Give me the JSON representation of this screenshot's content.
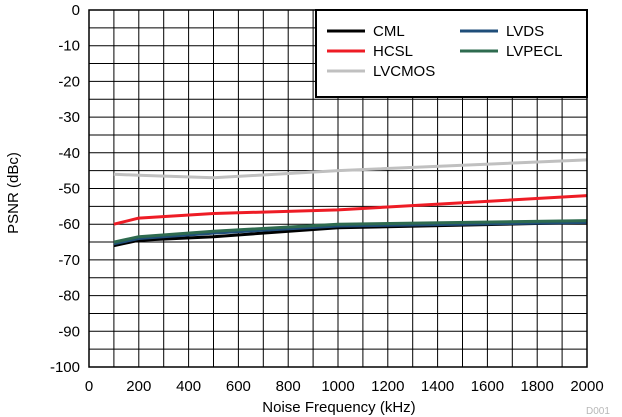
{
  "chart_data": {
    "type": "line",
    "xlabel": "Noise Frequency (kHz)",
    "ylabel": "PSNR (dBc)",
    "xlim": [
      0,
      2000
    ],
    "ylim": [
      -100,
      0
    ],
    "x_ticks": [
      0,
      200,
      400,
      600,
      800,
      1000,
      1200,
      1400,
      1600,
      1800,
      2000
    ],
    "y_ticks": [
      0,
      -10,
      -20,
      -30,
      -40,
      -50,
      -60,
      -70,
      -80,
      -90,
      -100
    ],
    "x_tick_labels": [
      "0",
      "200",
      "400",
      "600",
      "800",
      "1000",
      "1200",
      "1400",
      "1600",
      "1800",
      "2000"
    ],
    "y_tick_labels": [
      "0",
      "-10",
      "-20",
      "-30",
      "-40",
      "-50",
      "-60",
      "-70",
      "-80",
      "-90",
      "-100"
    ],
    "grid": true,
    "legend_position": "top-right",
    "figure_id": "D001",
    "series": [
      {
        "name": "CML",
        "color": "#000000",
        "x": [
          100,
          200,
          500,
          1000,
          2000
        ],
        "y": [
          -66,
          -64.5,
          -63.5,
          -61,
          -59.5
        ]
      },
      {
        "name": "HCSL",
        "color": "#ee1c25",
        "x": [
          100,
          200,
          500,
          1000,
          2000
        ],
        "y": [
          -60,
          -58.3,
          -57,
          -56,
          -52
        ]
      },
      {
        "name": "LVCMOS",
        "color": "#c0c0c0",
        "x": [
          100,
          200,
          500,
          1000,
          2000
        ],
        "y": [
          -46,
          -46.3,
          -47,
          -45,
          -42
        ]
      },
      {
        "name": "LVDS",
        "color": "#1f4e79",
        "x": [
          100,
          200,
          500,
          1000,
          2000
        ],
        "y": [
          -65.5,
          -64,
          -62.5,
          -60.5,
          -59.5
        ]
      },
      {
        "name": "LVPECL",
        "color": "#2e6b4f",
        "x": [
          100,
          200,
          500,
          1000,
          2000
        ],
        "y": [
          -65,
          -63.5,
          -62,
          -60,
          -59
        ]
      }
    ]
  }
}
